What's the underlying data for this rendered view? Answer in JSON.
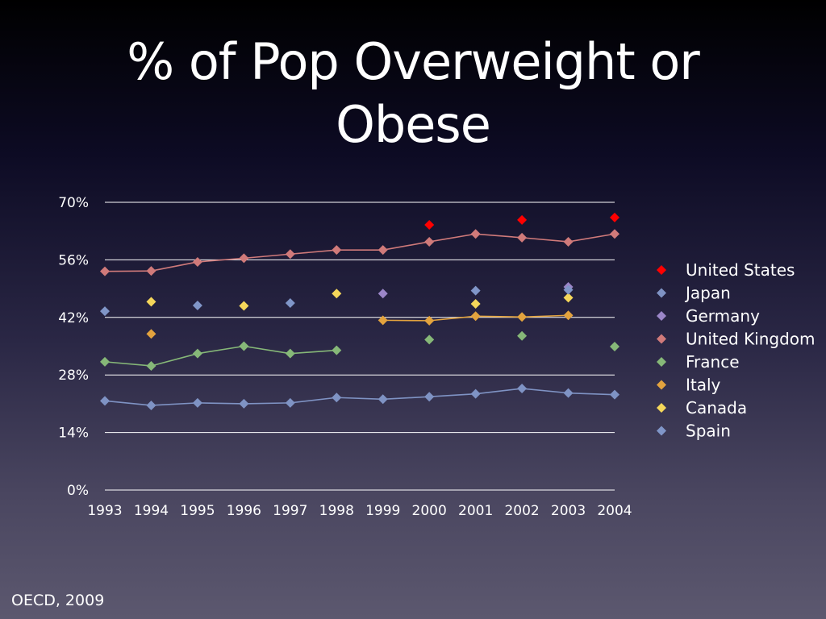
{
  "slide": {
    "title_line1": "% of Pop Overweight or",
    "title_line2": "Obese",
    "source": "OECD, 2009"
  },
  "chart_data": {
    "type": "line",
    "title": "% of Pop Overweight or Obese",
    "xlabel": "",
    "ylabel": "",
    "x": [
      1993,
      1994,
      1995,
      1996,
      1997,
      1998,
      1999,
      2000,
      2001,
      2002,
      2003,
      2004
    ],
    "ylim": [
      0,
      70
    ],
    "yticks": [
      "0%",
      "14%",
      "28%",
      "42%",
      "56%",
      "70%"
    ],
    "ytick_values": [
      0,
      14,
      28,
      42,
      56,
      70
    ],
    "grid": true,
    "legend": "right",
    "series": [
      {
        "name": "United States",
        "color": "#ff0000",
        "values": [
          null,
          null,
          null,
          null,
          null,
          null,
          null,
          64.5,
          null,
          65.7,
          null,
          66.3
        ]
      },
      {
        "name": "Japan",
        "color": "#7f93c4",
        "values": [
          21.7,
          20.6,
          21.2,
          21.0,
          21.2,
          22.5,
          22.1,
          22.7,
          23.4,
          24.7,
          23.6,
          23.2
        ]
      },
      {
        "name": "Germany",
        "color": "#9b86c8",
        "values": [
          null,
          null,
          null,
          null,
          null,
          null,
          47.8,
          null,
          null,
          null,
          49.4,
          null
        ]
      },
      {
        "name": "United Kingdom",
        "color": "#d07a7a",
        "values": [
          53.2,
          53.3,
          55.5,
          56.4,
          57.4,
          58.4,
          58.4,
          60.4,
          62.3,
          61.4,
          60.4,
          62.3
        ]
      },
      {
        "name": "France",
        "color": "#86b878",
        "values": [
          31.2,
          30.2,
          33.2,
          35.0,
          33.2,
          34.0,
          null,
          36.6,
          null,
          37.5,
          null,
          34.9
        ]
      },
      {
        "name": "Italy",
        "color": "#e3a33e",
        "values": [
          null,
          38.0,
          null,
          null,
          null,
          null,
          41.3,
          41.2,
          42.3,
          42.1,
          42.5,
          null
        ]
      },
      {
        "name": "Canada",
        "color": "#f5d75a",
        "values": [
          null,
          45.8,
          null,
          44.8,
          null,
          47.8,
          null,
          null,
          45.3,
          null,
          46.8,
          null
        ]
      },
      {
        "name": "Spain",
        "color": "#8096c8",
        "values": [
          43.5,
          null,
          44.9,
          null,
          45.5,
          null,
          null,
          null,
          48.5,
          null,
          48.7,
          null
        ]
      }
    ]
  }
}
